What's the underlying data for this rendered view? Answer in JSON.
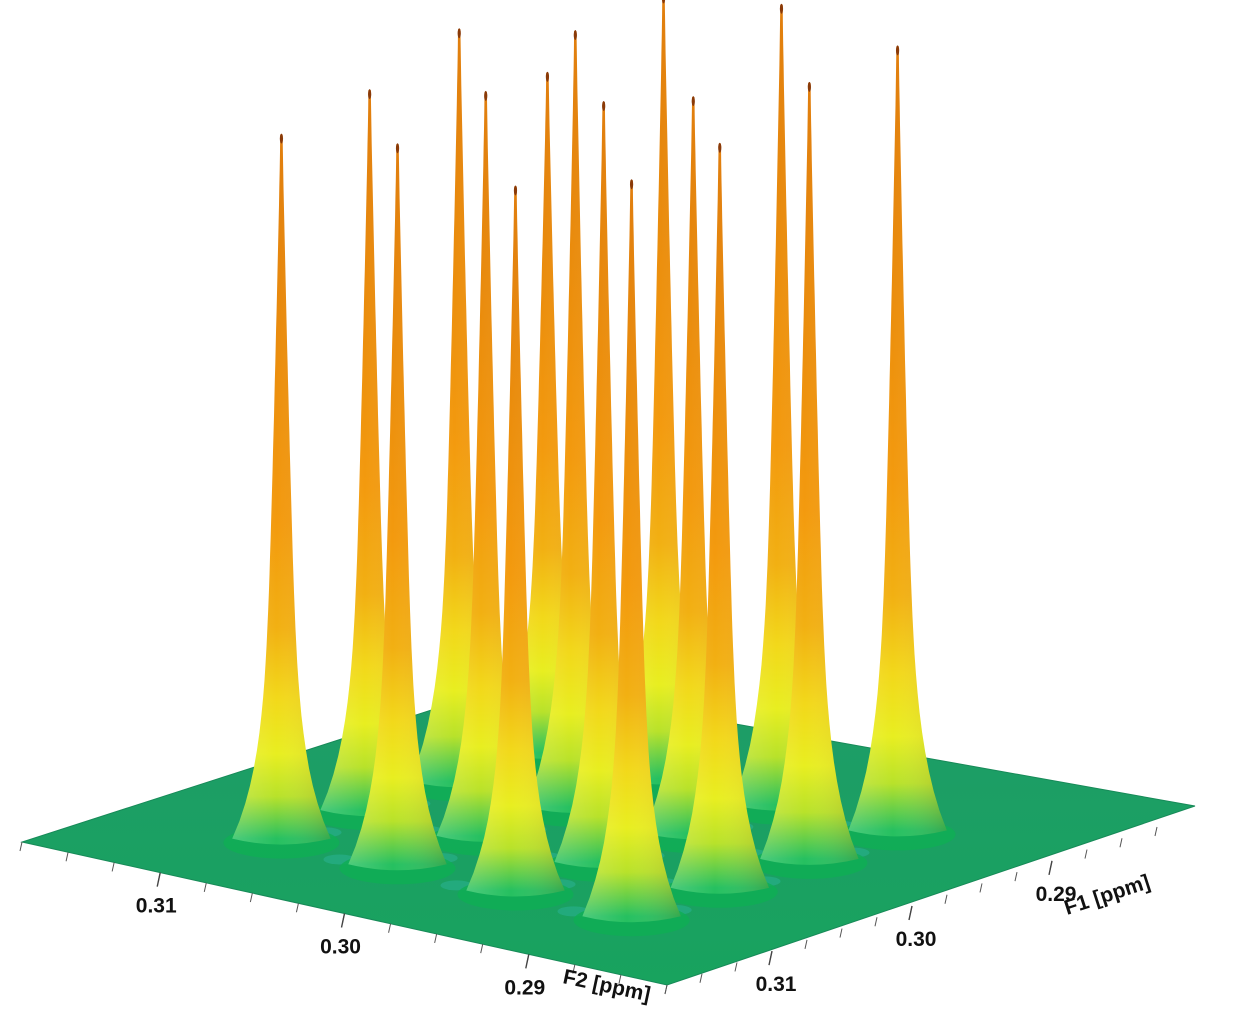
{
  "chart_data": {
    "type": "surface",
    "z_label": "",
    "axes": {
      "f2": {
        "label": "F2 [ppm]",
        "ticks": [
          0.31,
          0.3,
          0.29
        ],
        "tick_labels": [
          "0.31",
          "0.30",
          "0.29"
        ],
        "range": [
          0.3175,
          0.2825
        ],
        "reversed": true
      },
      "f1": {
        "label": "F1 [ppm]",
        "ticks": [
          0.31,
          0.3,
          0.29
        ],
        "tick_labels": [
          "0.31",
          "0.30",
          "0.29"
        ],
        "range": [
          0.3175,
          0.2825
        ],
        "reversed": true
      }
    },
    "peak_grid": {
      "f2_positions": [
        0.3095,
        0.3032,
        0.2968,
        0.2905
      ],
      "f1_positions": [
        0.3095,
        0.3032,
        0.2968,
        0.2905
      ]
    },
    "peaks": [
      {
        "f2": 0.3095,
        "f1": 0.2905,
        "height": 0.85
      },
      {
        "f2": 0.3095,
        "f1": 0.2968,
        "height": 0.94
      },
      {
        "f2": 0.3095,
        "f1": 0.3032,
        "height": 0.9
      },
      {
        "f2": 0.3095,
        "f1": 0.3095,
        "height": 0.88
      },
      {
        "f2": 0.3032,
        "f1": 0.2905,
        "height": 0.98
      },
      {
        "f2": 0.3032,
        "f1": 0.2968,
        "height": 0.97
      },
      {
        "f2": 0.3032,
        "f1": 0.3032,
        "height": 0.93
      },
      {
        "f2": 0.3032,
        "f1": 0.3095,
        "height": 0.9
      },
      {
        "f2": 0.2968,
        "f1": 0.2905,
        "height": 1.0
      },
      {
        "f2": 0.2968,
        "f1": 0.2968,
        "height": 0.92
      },
      {
        "f2": 0.2968,
        "f1": 0.3032,
        "height": 0.95
      },
      {
        "f2": 0.2968,
        "f1": 0.3095,
        "height": 0.88
      },
      {
        "f2": 0.2905,
        "f1": 0.2905,
        "height": 0.98
      },
      {
        "f2": 0.2905,
        "f1": 0.2968,
        "height": 0.97
      },
      {
        "f2": 0.2905,
        "f1": 0.3032,
        "height": 0.93
      },
      {
        "f2": 0.2905,
        "f1": 0.3095,
        "height": 0.92
      }
    ],
    "colormap": [
      "#2e9a5a",
      "#10b85a",
      "#c8e41c",
      "#f2e214",
      "#f6b010",
      "#f39a0e",
      "#e88a0c"
    ],
    "base_color": "#1fa56a",
    "grid": false,
    "legend": "none"
  }
}
